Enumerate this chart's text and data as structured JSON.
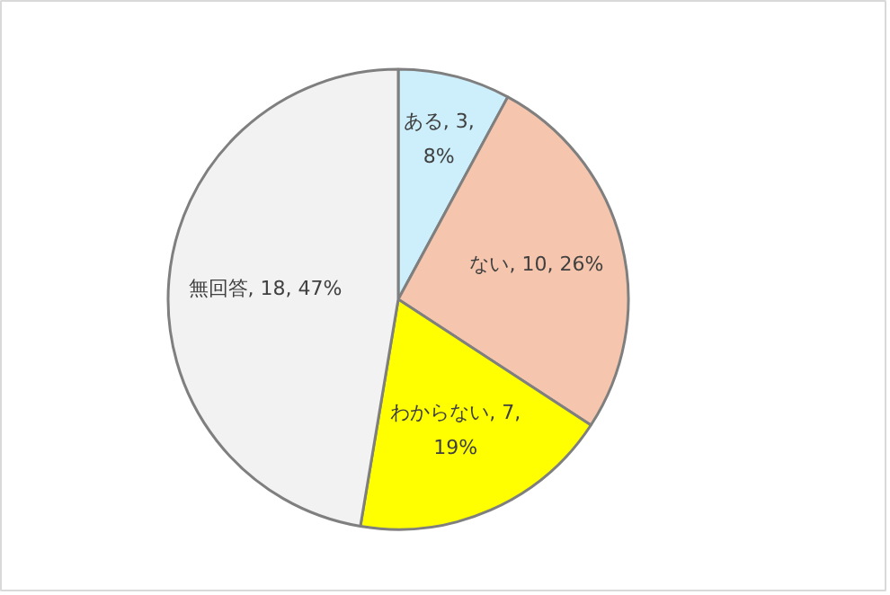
{
  "chart_data": {
    "type": "pie",
    "categories": [
      "ある",
      "ない",
      "わからない",
      "無回答"
    ],
    "values": [
      3,
      10,
      7,
      18
    ],
    "colors": [
      "#cdeefb",
      "#f5c6ad",
      "#ffff00",
      "#f2f2f2"
    ],
    "value_labels": [
      "3, 8%",
      "10, 26%",
      "7, 19%",
      "18, 47%"
    ]
  }
}
